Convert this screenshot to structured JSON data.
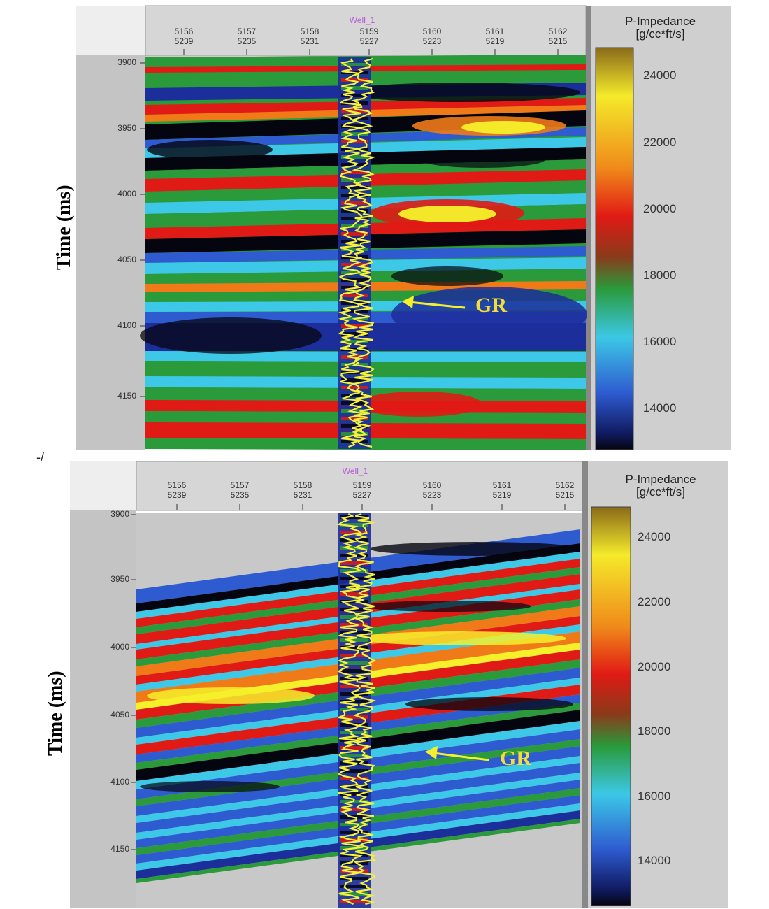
{
  "stray_mark": "-/",
  "chart_data": [
    {
      "type": "heatmap",
      "panel": "top",
      "ylabel": "Time (ms)",
      "well_name": "Well_1",
      "traces": [
        {
          "top": "5156",
          "bottom": "5239"
        },
        {
          "top": "5157",
          "bottom": "5235"
        },
        {
          "top": "5158",
          "bottom": "5231"
        },
        {
          "top": "5159",
          "bottom": "5227"
        },
        {
          "top": "5160",
          "bottom": "5223"
        },
        {
          "top": "5161",
          "bottom": "5219"
        },
        {
          "top": "5162",
          "bottom": "5215"
        }
      ],
      "y_ticks": [
        "3900",
        "3950",
        "4000",
        "4050",
        "4100",
        "4150"
      ],
      "ylim": [
        3900,
        4190
      ],
      "colorbar": {
        "title_line1": "P-Impedance",
        "title_line2": "[g/cc*ft/s]",
        "ticks": [
          "24000",
          "22000",
          "20000",
          "18000",
          "16000",
          "14000"
        ],
        "range": [
          13000,
          25000
        ]
      },
      "annotation": "GR"
    },
    {
      "type": "heatmap",
      "panel": "bottom",
      "ylabel": "Time (ms)",
      "well_name": "Well_1",
      "traces": [
        {
          "top": "5156",
          "bottom": "5239"
        },
        {
          "top": "5157",
          "bottom": "5235"
        },
        {
          "top": "5158",
          "bottom": "5231"
        },
        {
          "top": "5159",
          "bottom": "5227"
        },
        {
          "top": "5160",
          "bottom": "5223"
        },
        {
          "top": "5161",
          "bottom": "5219"
        },
        {
          "top": "5162",
          "bottom": "5215"
        }
      ],
      "y_ticks": [
        "3900",
        "3950",
        "4000",
        "4050",
        "4100",
        "4150"
      ],
      "ylim": [
        3900,
        4190
      ],
      "colorbar": {
        "title_line1": "P-Impedance",
        "title_line2": "[g/cc*ft/s]",
        "ticks": [
          "24000",
          "22000",
          "20000",
          "18000",
          "16000",
          "14000"
        ],
        "range": [
          13000,
          25000
        ]
      },
      "annotation": "GR"
    }
  ],
  "colors": {
    "black": "#050510",
    "deep_blue": "#1c2e9a",
    "blue": "#2e5bd0",
    "cyan": "#3cc8e6",
    "green": "#2a9a3a",
    "red": "#e01a14",
    "orange": "#f07a18",
    "yellow": "#f6f02a",
    "well_curve": "#f4f23a",
    "frame_grey": "#c4c4c4"
  }
}
